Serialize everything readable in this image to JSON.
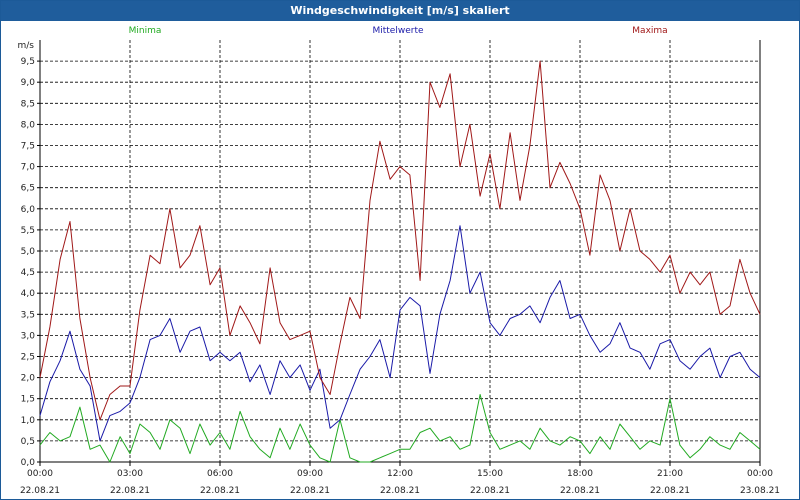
{
  "title": "Windgeschwindigkeit [m/s] skaliert",
  "chart_data": {
    "type": "line",
    "ylabel": "m/s",
    "ylim": [
      0,
      10
    ],
    "ytick_labels": [
      "0,0",
      "0,5",
      "1,0",
      "1,5",
      "2,0",
      "2,5",
      "3,0",
      "3,5",
      "4,0",
      "4,5",
      "5,0",
      "5,5",
      "6,0",
      "6,5",
      "7,0",
      "7,5",
      "8,0",
      "8,5",
      "9,0",
      "9,5"
    ],
    "xlim": [
      0,
      24
    ],
    "xtick_times": [
      "00:00",
      "03:00",
      "06:00",
      "09:00",
      "12:00",
      "15:00",
      "18:00",
      "21:00",
      "00:00"
    ],
    "xtick_dates": [
      "22.08.21",
      "22.08.21",
      "22.08.21",
      "22.08.21",
      "22.08.21",
      "22.08.21",
      "22.08.21",
      "22.08.21",
      "23.08.21"
    ],
    "grid": true,
    "series": [
      {
        "name": "Minima",
        "color": "#22aa22",
        "x": [
          0,
          0.33,
          0.67,
          1,
          1.33,
          1.67,
          2,
          2.33,
          2.67,
          3,
          3.33,
          3.67,
          4,
          4.33,
          4.67,
          5,
          5.33,
          5.67,
          6,
          6.33,
          6.67,
          7,
          7.33,
          7.67,
          8,
          8.33,
          8.67,
          9,
          9.33,
          9.67,
          10,
          10.33,
          10.67,
          11,
          11.33,
          11.67,
          12,
          12.33,
          12.67,
          13,
          13.33,
          13.67,
          14,
          14.33,
          14.67,
          15,
          15.33,
          15.67,
          16,
          16.33,
          16.67,
          17,
          17.33,
          17.67,
          18,
          18.33,
          18.67,
          19,
          19.33,
          19.67,
          20,
          20.33,
          20.67,
          21,
          21.33,
          21.67,
          22,
          22.33,
          22.67,
          23,
          23.33,
          23.67,
          24
        ],
        "values": [
          0.4,
          0.7,
          0.5,
          0.6,
          1.3,
          0.3,
          0.4,
          0.0,
          0.6,
          0.2,
          0.9,
          0.7,
          0.3,
          1.0,
          0.8,
          0.2,
          0.9,
          0.4,
          0.7,
          0.3,
          1.2,
          0.6,
          0.3,
          0.1,
          0.8,
          0.3,
          0.9,
          0.4,
          0.1,
          0.0,
          1.0,
          0.1,
          0.0,
          0.0,
          0.1,
          0.2,
          0.3,
          0.3,
          0.7,
          0.8,
          0.5,
          0.6,
          0.3,
          0.4,
          1.6,
          0.7,
          0.3,
          0.4,
          0.5,
          0.3,
          0.8,
          0.5,
          0.4,
          0.6,
          0.5,
          0.2,
          0.6,
          0.3,
          0.9,
          0.6,
          0.3,
          0.5,
          0.4,
          1.5,
          0.4,
          0.1,
          0.3,
          0.6,
          0.4,
          0.3,
          0.7,
          0.5,
          0.3
        ]
      },
      {
        "name": "Mittelwerte",
        "color": "#1a1aa8",
        "x": [
          0,
          0.33,
          0.67,
          1,
          1.33,
          1.67,
          2,
          2.33,
          2.67,
          3,
          3.33,
          3.67,
          4,
          4.33,
          4.67,
          5,
          5.33,
          5.67,
          6,
          6.33,
          6.67,
          7,
          7.33,
          7.67,
          8,
          8.33,
          8.67,
          9,
          9.33,
          9.67,
          10,
          10.33,
          10.67,
          11,
          11.33,
          11.67,
          12,
          12.33,
          12.67,
          13,
          13.33,
          13.67,
          14,
          14.33,
          14.67,
          15,
          15.33,
          15.67,
          16,
          16.33,
          16.67,
          17,
          17.33,
          17.67,
          18,
          18.33,
          18.67,
          19,
          19.33,
          19.67,
          20,
          20.33,
          20.67,
          21,
          21.33,
          21.67,
          22,
          22.33,
          22.67,
          23,
          23.33,
          23.67,
          24
        ],
        "values": [
          1.1,
          1.9,
          2.4,
          3.1,
          2.2,
          1.8,
          0.5,
          1.1,
          1.2,
          1.4,
          2.0,
          2.9,
          3.0,
          3.4,
          2.6,
          3.1,
          3.2,
          2.4,
          2.6,
          2.4,
          2.6,
          1.9,
          2.3,
          1.6,
          2.4,
          2.0,
          2.3,
          1.7,
          2.2,
          0.8,
          1.0,
          1.6,
          2.2,
          2.5,
          2.9,
          2.0,
          3.6,
          3.9,
          3.7,
          2.1,
          3.5,
          4.3,
          5.6,
          4.0,
          4.5,
          3.3,
          3.0,
          3.4,
          3.5,
          3.7,
          3.3,
          3.9,
          4.3,
          3.4,
          3.5,
          3.0,
          2.6,
          2.8,
          3.3,
          2.7,
          2.6,
          2.2,
          2.8,
          2.9,
          2.4,
          2.2,
          2.5,
          2.7,
          2.0,
          2.5,
          2.6,
          2.2,
          2.0
        ]
      },
      {
        "name": "Maxima",
        "color": "#a01818",
        "x": [
          0,
          0.33,
          0.67,
          1,
          1.33,
          1.67,
          2,
          2.33,
          2.67,
          3,
          3.33,
          3.67,
          4,
          4.33,
          4.67,
          5,
          5.33,
          5.67,
          6,
          6.33,
          6.67,
          7,
          7.33,
          7.67,
          8,
          8.33,
          8.67,
          9,
          9.33,
          9.67,
          10,
          10.33,
          10.67,
          11,
          11.33,
          11.67,
          12,
          12.33,
          12.67,
          13,
          13.33,
          13.67,
          14,
          14.33,
          14.67,
          15,
          15.33,
          15.67,
          16,
          16.33,
          16.67,
          17,
          17.33,
          17.67,
          18,
          18.33,
          18.67,
          19,
          19.33,
          19.67,
          20,
          20.33,
          20.67,
          21,
          21.33,
          21.67,
          22,
          22.33,
          22.67,
          23,
          23.33,
          23.67,
          24
        ],
        "values": [
          2.0,
          3.2,
          4.8,
          5.7,
          3.4,
          2.0,
          1.0,
          1.6,
          1.8,
          1.8,
          3.6,
          4.9,
          4.7,
          6.0,
          4.6,
          4.9,
          5.6,
          4.2,
          4.6,
          3.0,
          3.7,
          3.3,
          2.8,
          4.6,
          3.3,
          2.9,
          3.0,
          3.1,
          2.0,
          1.6,
          2.8,
          3.9,
          3.4,
          6.2,
          7.6,
          6.7,
          7.0,
          6.8,
          4.3,
          9.0,
          8.4,
          9.2,
          7.0,
          8.0,
          6.3,
          7.3,
          6.0,
          7.8,
          6.2,
          7.5,
          9.5,
          6.5,
          7.1,
          6.6,
          6.0,
          4.9,
          6.8,
          6.2,
          5.0,
          6.0,
          5.0,
          4.8,
          4.5,
          4.9,
          4.0,
          4.5,
          4.2,
          4.5,
          3.5,
          3.7,
          4.8,
          4.0,
          3.5
        ]
      }
    ]
  }
}
